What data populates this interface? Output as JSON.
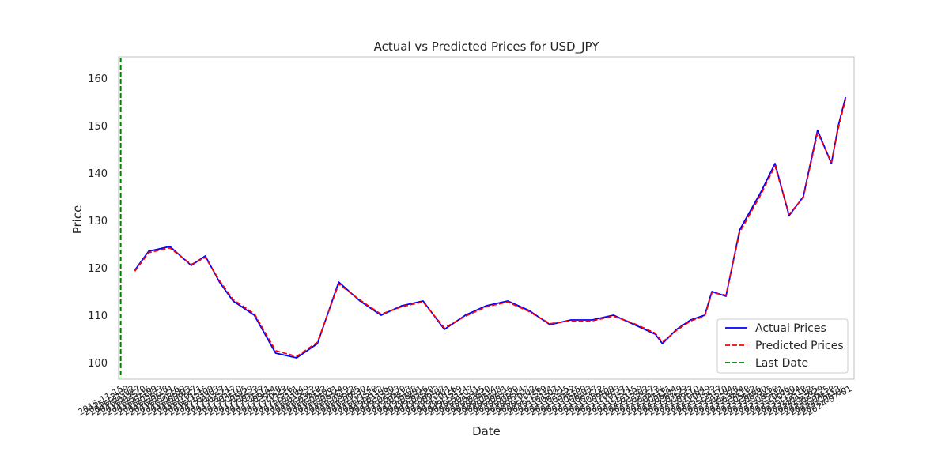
{
  "chart_data": {
    "type": "line",
    "title": "Actual vs Predicted Prices for USD_JPY",
    "xlabel": "Date",
    "ylabel": "Price",
    "yticks": [
      100,
      110,
      120,
      130,
      140,
      150,
      160
    ],
    "ylim": [
      96.5,
      164.5
    ],
    "xlim": [
      "2015-10-23",
      "2024-07-08"
    ],
    "grid": false,
    "legend_position": "lower-right",
    "colors": {
      "actual": "#0000ff",
      "predicted": "#ff0000",
      "last_date": "#008000"
    },
    "x": [
      "2016-01-01",
      "2016-03-01",
      "2016-06-01",
      "2016-09-01",
      "2016-11-01",
      "2017-01-01",
      "2017-03-01",
      "2017-06-01",
      "2017-09-01",
      "2017-12-01",
      "2018-03-01",
      "2018-06-01",
      "2018-09-01",
      "2018-12-01",
      "2019-03-01",
      "2019-06-01",
      "2019-09-01",
      "2019-12-01",
      "2020-03-01",
      "2020-06-01",
      "2020-09-01",
      "2020-12-01",
      "2021-03-01",
      "2021-06-01",
      "2021-09-01",
      "2021-12-01",
      "2022-03-01",
      "2022-04-01",
      "2022-06-01",
      "2022-08-01",
      "2022-10-01",
      "2022-11-01",
      "2023-01-01",
      "2023-03-01",
      "2023-06-01",
      "2023-08-01",
      "2023-10-01",
      "2023-12-01",
      "2024-02-01",
      "2024-04-01",
      "2024-05-01",
      "2024-06-01"
    ],
    "series": [
      {
        "name": "Actual Prices",
        "style": "solid",
        "values": [
          119.5,
          123.5,
          124.5,
          120.5,
          122.5,
          117,
          113,
          110,
          102,
          101,
          104,
          117,
          113,
          110,
          112,
          113,
          107,
          110,
          112,
          113,
          111,
          108,
          109,
          109,
          110,
          108,
          106,
          104,
          107,
          109,
          110,
          115,
          114,
          128,
          136,
          142,
          131,
          135,
          149,
          142,
          150,
          156
        ]
      },
      {
        "name": "Predicted Prices",
        "style": "dashed",
        "values": [
          119.3,
          123.2,
          124.2,
          120.7,
          122.2,
          117.3,
          113.3,
          110.3,
          102.5,
          101.3,
          104.3,
          116.6,
          113.2,
          110.2,
          111.8,
          112.8,
          107.3,
          109.8,
          111.8,
          112.8,
          110.8,
          108.2,
          108.8,
          108.8,
          109.8,
          108.2,
          106.2,
          104.3,
          106.8,
          108.8,
          109.8,
          114.8,
          114.2,
          127.5,
          135.5,
          141.5,
          131.3,
          134.8,
          148.5,
          142.3,
          149.5,
          155.6
        ]
      }
    ],
    "vlines": [
      {
        "name": "Last Date",
        "x": "2015-11-01",
        "style": "dashed"
      }
    ]
  }
}
